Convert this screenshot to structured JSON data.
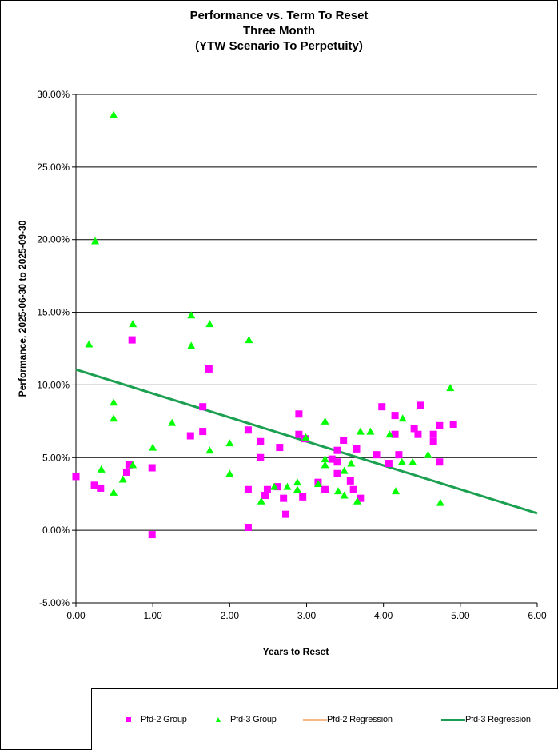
{
  "chart_data": {
    "type": "scatter",
    "title_lines": [
      "Performance vs. Term To Reset",
      "Three Month",
      "(YTW Scenario To Perpetuity)"
    ],
    "xlabel": "Years to Reset",
    "ylabel": "Performance, 2025-06-30  to 2025-09-30",
    "xlim": [
      0,
      6
    ],
    "ylim": [
      -5,
      30
    ],
    "x_ticks": [
      0,
      1,
      2,
      3,
      4,
      5,
      6
    ],
    "x_tick_labels": [
      "0.00",
      "1.00",
      "2.00",
      "3.00",
      "4.00",
      "5.00",
      "6.00"
    ],
    "y_ticks": [
      -5,
      0,
      5,
      10,
      15,
      20,
      25,
      30
    ],
    "y_tick_labels": [
      "-5.00%",
      "0.00%",
      "5.00%",
      "10.00%",
      "15.00%",
      "20.00%",
      "25.00%",
      "30.00%"
    ],
    "grid": "horizontal",
    "legend_position": "bottom",
    "series": [
      {
        "name": "Pfd-2 Group",
        "kind": "scatter",
        "marker": "square",
        "color": "#FF00FF",
        "points": [
          [
            0.0,
            3.7
          ],
          [
            0.24,
            3.1
          ],
          [
            0.32,
            2.9
          ],
          [
            0.66,
            4.0
          ],
          [
            0.69,
            4.5
          ],
          [
            0.73,
            13.1
          ],
          [
            0.99,
            4.3
          ],
          [
            0.99,
            -0.3
          ],
          [
            1.49,
            6.5
          ],
          [
            1.65,
            6.8
          ],
          [
            1.65,
            8.5
          ],
          [
            1.73,
            11.1
          ],
          [
            2.24,
            6.9
          ],
          [
            2.24,
            2.8
          ],
          [
            2.24,
            0.2
          ],
          [
            2.4,
            6.1
          ],
          [
            2.4,
            5.0
          ],
          [
            2.46,
            2.4
          ],
          [
            2.49,
            2.8
          ],
          [
            2.62,
            3.0
          ],
          [
            2.65,
            5.7
          ],
          [
            2.73,
            1.1
          ],
          [
            2.7,
            2.2
          ],
          [
            2.9,
            8.0
          ],
          [
            2.9,
            6.6
          ],
          [
            2.98,
            6.3
          ],
          [
            2.95,
            2.3
          ],
          [
            3.15,
            3.3
          ],
          [
            3.24,
            2.8
          ],
          [
            3.33,
            4.9
          ],
          [
            3.4,
            4.7
          ],
          [
            3.4,
            5.5
          ],
          [
            3.4,
            3.9
          ],
          [
            3.48,
            6.2
          ],
          [
            3.57,
            3.4
          ],
          [
            3.61,
            2.8
          ],
          [
            3.65,
            5.6
          ],
          [
            3.7,
            2.2
          ],
          [
            3.91,
            5.2
          ],
          [
            3.98,
            8.5
          ],
          [
            4.07,
            4.6
          ],
          [
            4.15,
            7.9
          ],
          [
            4.15,
            6.6
          ],
          [
            4.2,
            5.2
          ],
          [
            4.4,
            7.0
          ],
          [
            4.45,
            6.6
          ],
          [
            4.48,
            8.6
          ],
          [
            4.65,
            6.6
          ],
          [
            4.65,
            6.1
          ],
          [
            4.73,
            4.7
          ],
          [
            4.73,
            7.2
          ],
          [
            4.91,
            7.3
          ]
        ]
      },
      {
        "name": "Pfd-3 Group",
        "kind": "scatter",
        "marker": "triangle",
        "color": "#00FF00",
        "points": [
          [
            0.25,
            19.9
          ],
          [
            0.49,
            28.6
          ],
          [
            0.17,
            12.8
          ],
          [
            0.74,
            14.2
          ],
          [
            0.49,
            8.8
          ],
          [
            0.49,
            7.7
          ],
          [
            0.33,
            4.2
          ],
          [
            0.61,
            3.5
          ],
          [
            0.49,
            2.6
          ],
          [
            0.74,
            4.5
          ],
          [
            1.0,
            5.7
          ],
          [
            1.25,
            7.4
          ],
          [
            1.5,
            14.8
          ],
          [
            1.5,
            12.7
          ],
          [
            1.74,
            14.2
          ],
          [
            1.74,
            5.5
          ],
          [
            2.0,
            6.0
          ],
          [
            2.0,
            3.9
          ],
          [
            2.25,
            13.1
          ],
          [
            2.41,
            2.0
          ],
          [
            2.58,
            3.0
          ],
          [
            2.75,
            3.0
          ],
          [
            2.88,
            3.3
          ],
          [
            2.88,
            2.8
          ],
          [
            2.99,
            6.4
          ],
          [
            3.15,
            3.2
          ],
          [
            3.24,
            7.5
          ],
          [
            3.24,
            4.9
          ],
          [
            3.24,
            4.5
          ],
          [
            3.41,
            2.7
          ],
          [
            3.49,
            2.4
          ],
          [
            3.49,
            4.1
          ],
          [
            3.58,
            4.6
          ],
          [
            3.66,
            2.0
          ],
          [
            3.7,
            6.8
          ],
          [
            3.83,
            6.8
          ],
          [
            4.08,
            6.6
          ],
          [
            4.16,
            2.7
          ],
          [
            4.25,
            7.7
          ],
          [
            4.24,
            4.7
          ],
          [
            4.38,
            4.7
          ],
          [
            4.58,
            5.2
          ],
          [
            4.74,
            1.9
          ],
          [
            4.87,
            9.8
          ]
        ]
      },
      {
        "name": "Pfd-2 Regression",
        "kind": "line",
        "color": "#F5B987",
        "points": []
      },
      {
        "name": "Pfd-3 Regression",
        "kind": "line",
        "color": "#1AA050",
        "points": [
          [
            0,
            11.06
          ],
          [
            6,
            1.17
          ]
        ]
      }
    ]
  }
}
